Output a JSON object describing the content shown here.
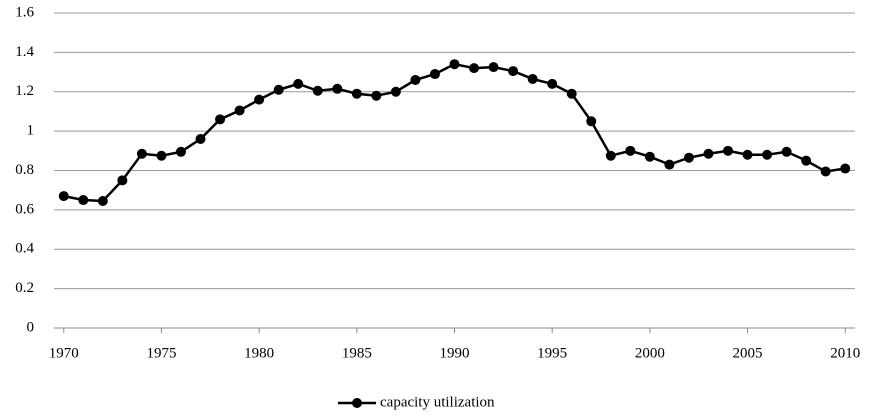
{
  "chart_data": {
    "type": "line",
    "x": [
      1970,
      1971,
      1972,
      1973,
      1974,
      1975,
      1976,
      1977,
      1978,
      1979,
      1980,
      1981,
      1982,
      1983,
      1984,
      1985,
      1986,
      1987,
      1988,
      1989,
      1990,
      1991,
      1992,
      1993,
      1994,
      1995,
      1996,
      1997,
      1998,
      1999,
      2000,
      2001,
      2002,
      2003,
      2004,
      2005,
      2006,
      2007,
      2008,
      2009,
      2010
    ],
    "series": [
      {
        "name": "capacity utilization",
        "color": "#000000",
        "values": [
          0.67,
          0.65,
          0.645,
          0.75,
          0.885,
          0.875,
          0.895,
          0.96,
          1.06,
          1.105,
          1.16,
          1.21,
          1.24,
          1.205,
          1.215,
          1.19,
          1.18,
          1.2,
          1.26,
          1.29,
          1.34,
          1.32,
          1.325,
          1.305,
          1.265,
          1.24,
          1.19,
          1.05,
          0.875,
          0.9,
          0.87,
          0.83,
          0.865,
          0.885,
          0.9,
          0.88,
          0.88,
          0.895,
          0.85,
          0.795,
          0.81
        ]
      }
    ],
    "xlim": [
      1969.5,
      2010.5
    ],
    "xticks": [
      1970,
      1975,
      1980,
      1985,
      1990,
      1995,
      2000,
      2005,
      2010
    ],
    "ylim": [
      0,
      1.6
    ],
    "yticks": [
      0,
      0.2,
      0.4,
      0.6,
      0.8,
      1,
      1.2,
      1.4,
      1.6
    ],
    "grid": true,
    "legend": "bottom"
  }
}
